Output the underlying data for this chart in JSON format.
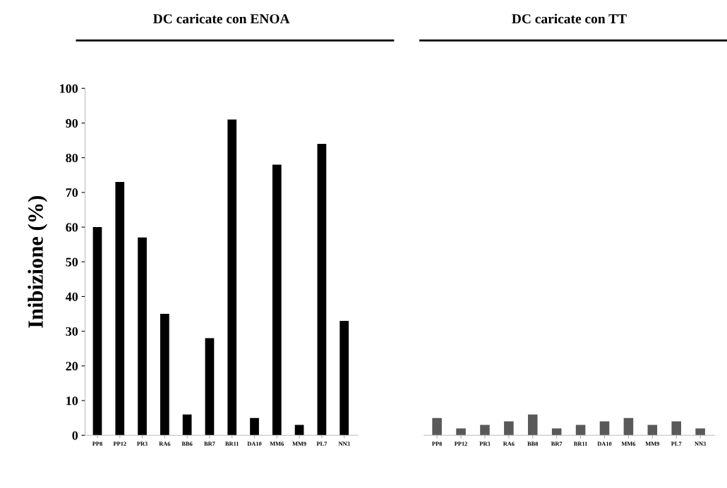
{
  "chart_data": [
    {
      "type": "bar",
      "title": "DC caricate con ENOA",
      "ylabel": "Inibizione (%)",
      "categories": [
        "PP8",
        "PP12",
        "PR3",
        "RA6",
        "BB6",
        "BR7",
        "BR11",
        "DA10",
        "MM6",
        "MM9",
        "PL7",
        "NN3"
      ],
      "values": [
        60,
        73,
        57,
        35,
        6,
        28,
        91,
        5,
        78,
        3,
        84,
        33
      ],
      "color": "#000000",
      "ylim": [
        0,
        100
      ],
      "yticks": [
        0,
        10,
        20,
        30,
        40,
        50,
        60,
        70,
        80,
        90,
        100
      ],
      "grid": false
    },
    {
      "type": "bar",
      "title": "DC caricate con TT",
      "categories": [
        "PP8",
        "PP12",
        "PR3",
        "RA6",
        "BB8",
        "BR7",
        "BR11",
        "DA10",
        "MM6",
        "MM9",
        "PL7",
        "NN3"
      ],
      "values": [
        5,
        2,
        3,
        4,
        6,
        2,
        3,
        4,
        5,
        3,
        4,
        2
      ],
      "color": "#595959",
      "ylim": [
        0,
        100
      ],
      "yticks": [
        0,
        10,
        20,
        30,
        40,
        50,
        60,
        70,
        80,
        90,
        100
      ],
      "tick_labels": "x",
      "grid": false
    }
  ]
}
